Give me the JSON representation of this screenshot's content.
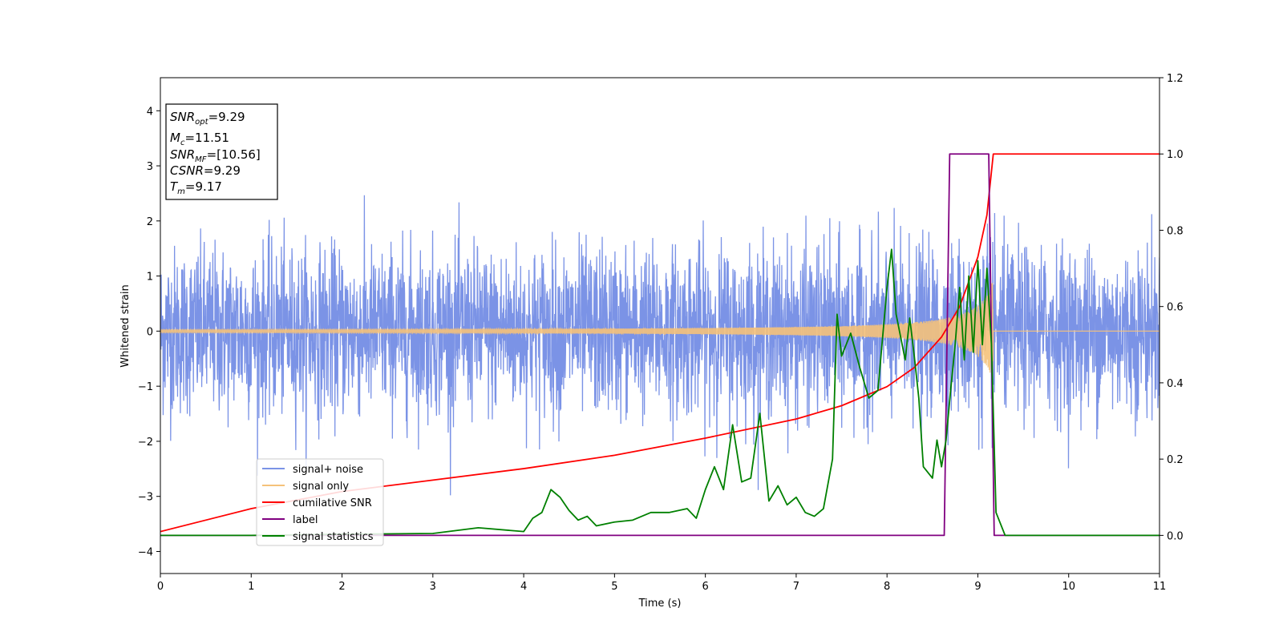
{
  "chart_data": {
    "type": "line",
    "xlabel": "Time (s)",
    "ylabel": "Whitened strain",
    "xlim": [
      0,
      11
    ],
    "ylim": [
      -4.4,
      4.6
    ],
    "y2lim": [
      -0.1,
      1.2
    ],
    "xticks": [
      "0",
      "1",
      "2",
      "3",
      "4",
      "5",
      "6",
      "7",
      "8",
      "9",
      "10",
      "11"
    ],
    "yticks": [
      "4",
      "3",
      "2",
      "1",
      "0",
      "−1",
      "−2",
      "−3",
      "−4"
    ],
    "y2ticks": [
      "1.2",
      "1.0",
      "0.8",
      "0.6",
      "0.4",
      "0.2",
      "0.0"
    ],
    "grid": false,
    "legend_position": "lower-left",
    "stats_box": {
      "snr_opt": "=9.29",
      "mc": "=11.51",
      "snr_mf": "=[10.56]",
      "csnr": "=9.29",
      "tm": "=9.17"
    },
    "series": [
      {
        "name": "signal+ noise",
        "axis": "left",
        "color": "#7b93e6",
        "description": "white noise amplitude about ±1.5 across the whole time span with signal embedded",
        "noise_std": 0.75,
        "x_range": [
          0,
          11
        ]
      },
      {
        "name": "signal only",
        "axis": "left",
        "color": "#f5c27a",
        "chirp": {
          "t_start": 0,
          "t_merge": 9.17,
          "amp_start": 0.02,
          "amp_merge": 1.05
        }
      },
      {
        "name": "cumilative SNR",
        "axis": "right",
        "color": "#ff0000",
        "x": [
          0,
          1,
          2,
          3,
          4,
          5,
          6,
          7,
          7.5,
          8,
          8.3,
          8.6,
          8.8,
          9.0,
          9.1,
          9.17,
          11
        ],
        "y": [
          0.01,
          0.07,
          0.115,
          0.145,
          0.175,
          0.21,
          0.255,
          0.305,
          0.34,
          0.39,
          0.44,
          0.52,
          0.6,
          0.73,
          0.84,
          1.0,
          1.0
        ]
      },
      {
        "name": "label",
        "axis": "right",
        "color": "#800080",
        "x": [
          0,
          8.63,
          8.69,
          9.12,
          9.18,
          11
        ],
        "y": [
          0,
          0,
          1.0,
          1.0,
          0,
          0
        ]
      },
      {
        "name": "signal statistics",
        "axis": "right",
        "color": "#008000",
        "x": [
          0,
          1,
          2,
          2.5,
          3,
          3.5,
          4,
          4.1,
          4.2,
          4.3,
          4.4,
          4.5,
          4.6,
          4.7,
          4.8,
          5,
          5.2,
          5.4,
          5.6,
          5.8,
          5.9,
          6,
          6.1,
          6.2,
          6.3,
          6.4,
          6.5,
          6.6,
          6.7,
          6.8,
          6.9,
          7,
          7.1,
          7.2,
          7.3,
          7.4,
          7.45,
          7.5,
          7.55,
          7.6,
          7.7,
          7.8,
          7.9,
          8.0,
          8.05,
          8.1,
          8.2,
          8.25,
          8.3,
          8.35,
          8.4,
          8.5,
          8.55,
          8.6,
          8.65,
          8.7,
          8.75,
          8.8,
          8.85,
          8.9,
          8.95,
          9.0,
          9.05,
          9.1,
          9.15,
          9.2,
          9.3,
          10,
          11
        ],
        "y": [
          0,
          0,
          0.003,
          0.004,
          0.005,
          0.02,
          0.01,
          0.045,
          0.06,
          0.12,
          0.1,
          0.065,
          0.04,
          0.05,
          0.025,
          0.035,
          0.04,
          0.06,
          0.06,
          0.07,
          0.045,
          0.12,
          0.18,
          0.12,
          0.29,
          0.14,
          0.15,
          0.32,
          0.09,
          0.13,
          0.08,
          0.1,
          0.06,
          0.05,
          0.07,
          0.2,
          0.58,
          0.47,
          0.5,
          0.53,
          0.44,
          0.36,
          0.38,
          0.65,
          0.75,
          0.58,
          0.46,
          0.57,
          0.47,
          0.36,
          0.18,
          0.15,
          0.25,
          0.18,
          0.25,
          0.38,
          0.5,
          0.65,
          0.46,
          0.68,
          0.48,
          0.72,
          0.5,
          0.7,
          0.5,
          0.06,
          0.0,
          0.0,
          0.0
        ]
      }
    ]
  }
}
